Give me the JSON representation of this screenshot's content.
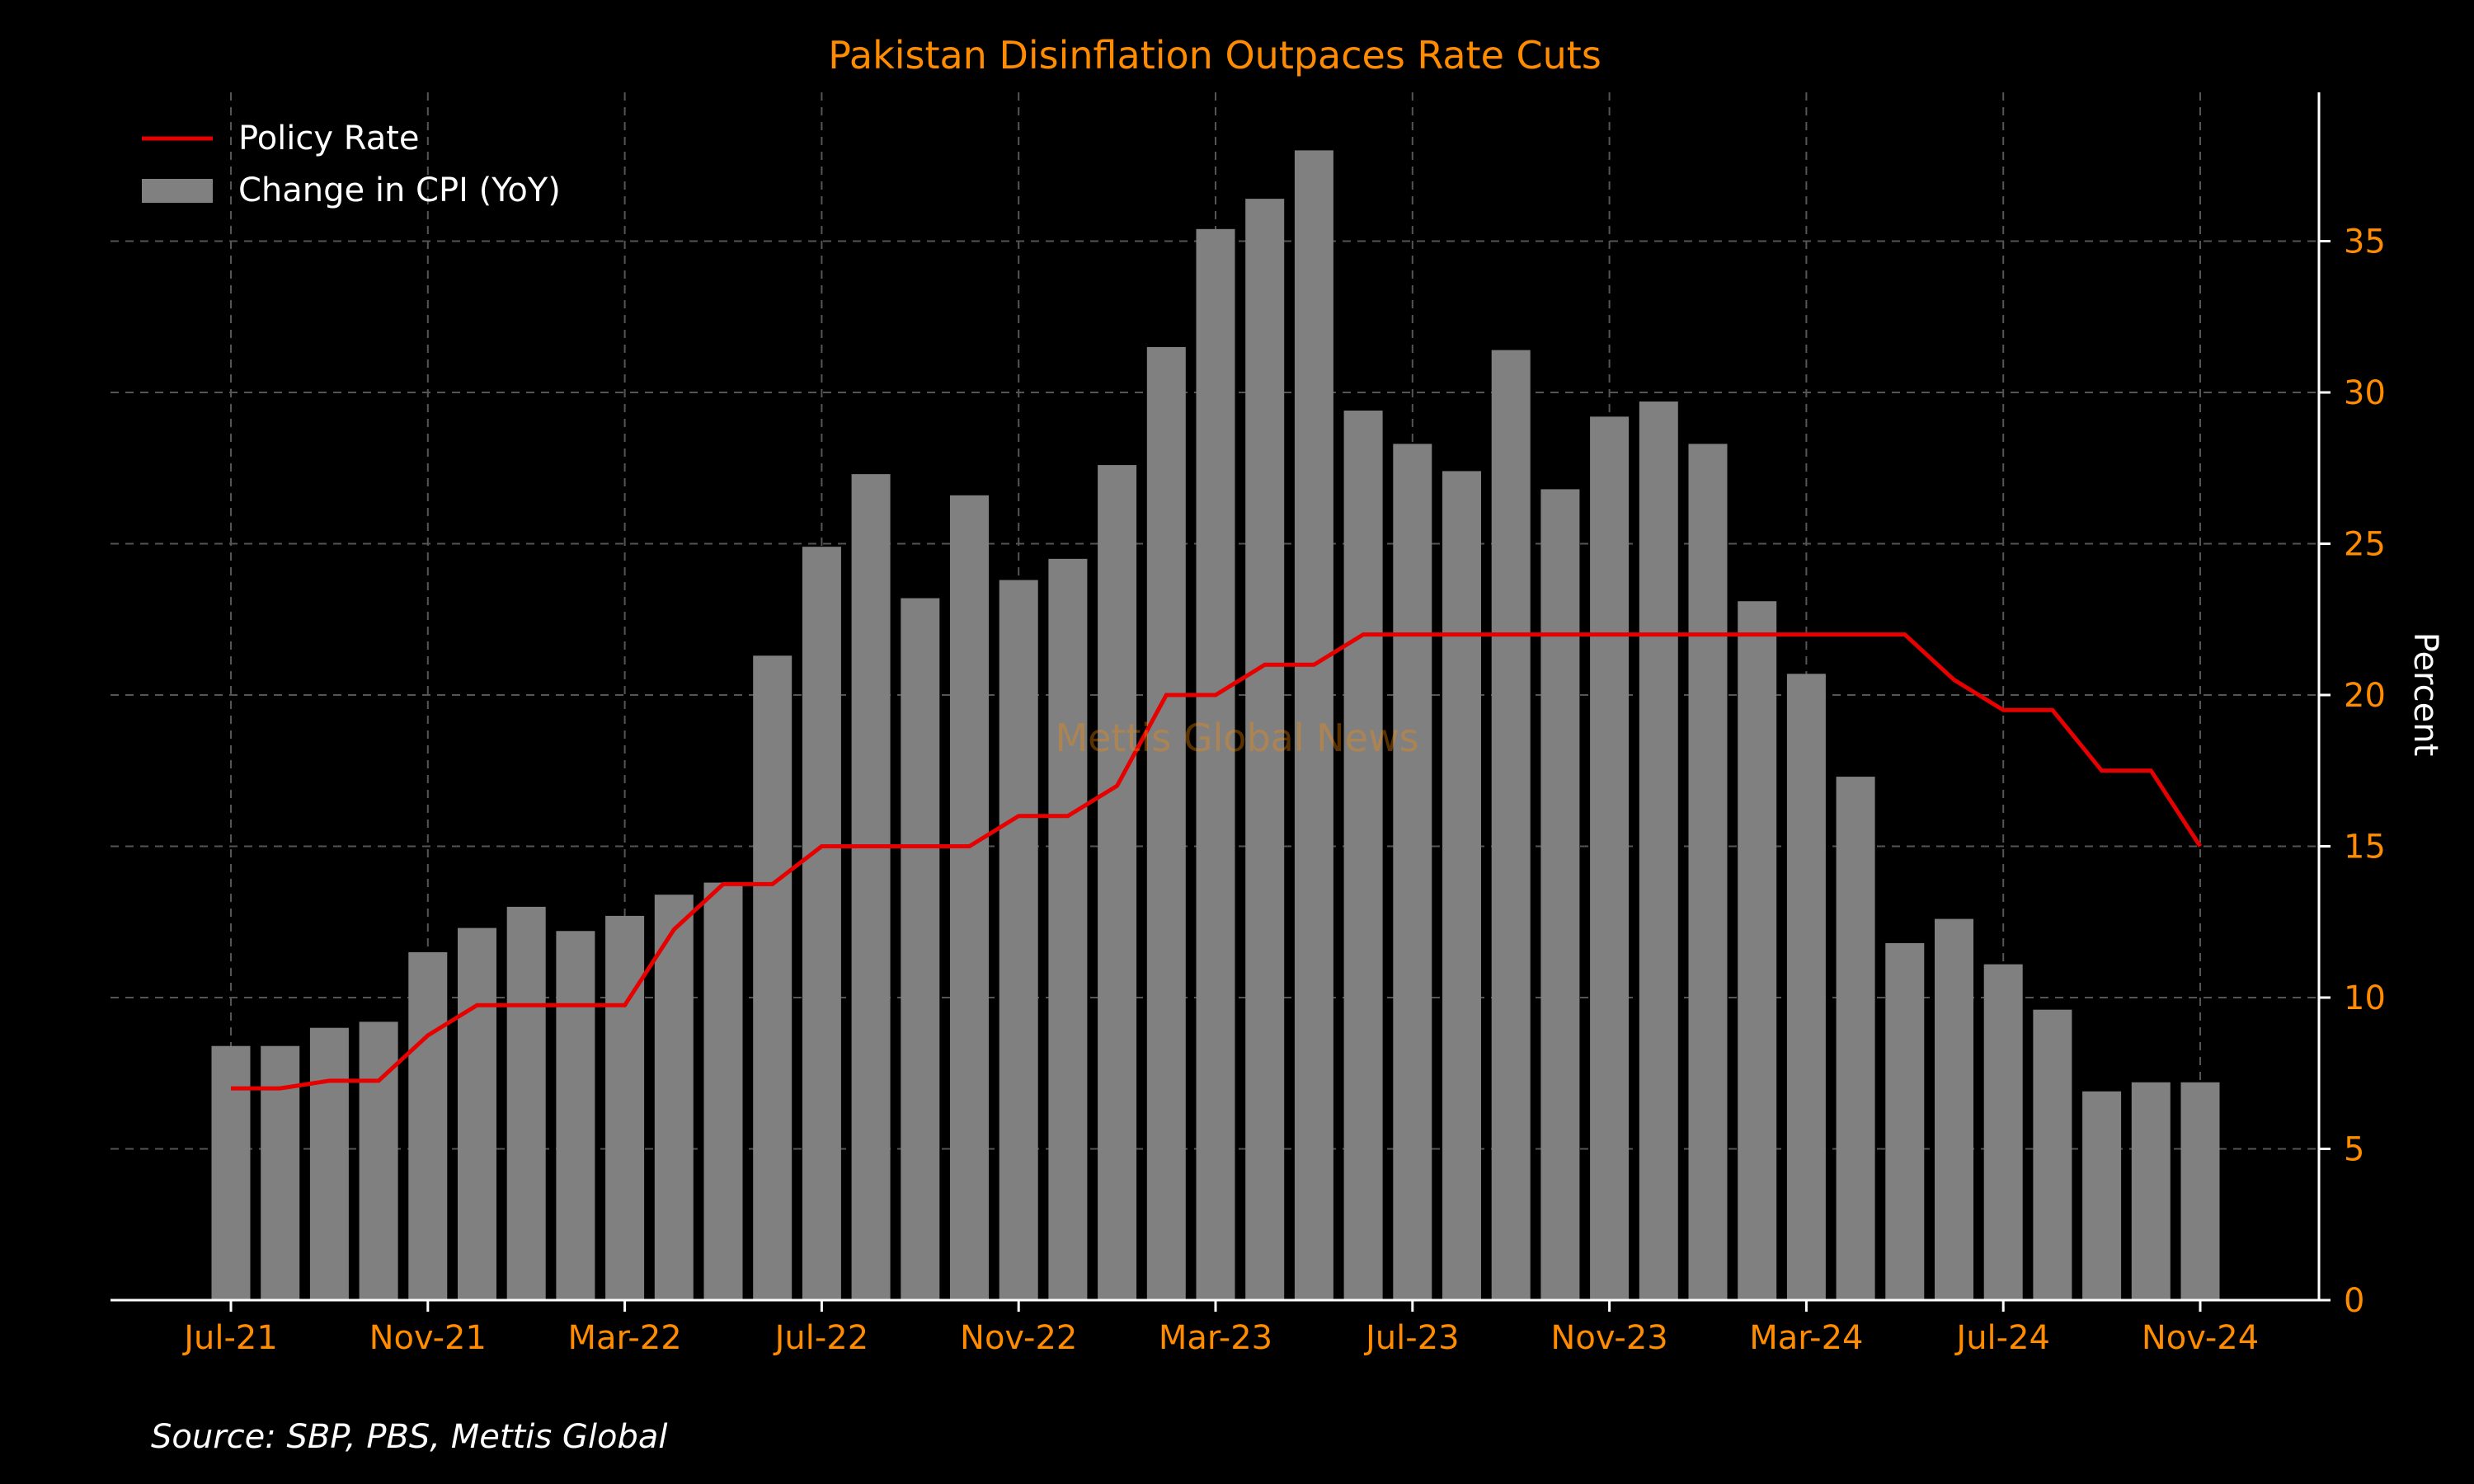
{
  "chart_data": {
    "type": "bar",
    "title": "Pakistan Disinflation Outpaces Rate Cuts",
    "ylabel": "Percent",
    "xlabel": "",
    "ylim": [
      0,
      40
    ],
    "yticks": [
      0,
      5,
      10,
      15,
      20,
      25,
      30,
      35
    ],
    "y_axis_side": "right",
    "grid": true,
    "legend_position": "top-left",
    "x_tick_labels": [
      "Jul-21",
      "Nov-21",
      "Mar-22",
      "Jul-22",
      "Nov-22",
      "Mar-23",
      "Jul-23",
      "Nov-23",
      "Mar-24",
      "Jul-24",
      "Nov-24"
    ],
    "categories": [
      "Jul-21",
      "Aug-21",
      "Sep-21",
      "Oct-21",
      "Nov-21",
      "Dec-21",
      "Jan-22",
      "Feb-22",
      "Mar-22",
      "Apr-22",
      "May-22",
      "Jun-22",
      "Jul-22",
      "Aug-22",
      "Sep-22",
      "Oct-22",
      "Nov-22",
      "Dec-22",
      "Jan-23",
      "Feb-23",
      "Mar-23",
      "Apr-23",
      "May-23",
      "Jun-23",
      "Jul-23",
      "Aug-23",
      "Sep-23",
      "Oct-23",
      "Nov-23",
      "Dec-23",
      "Jan-24",
      "Feb-24",
      "Mar-24",
      "Apr-24",
      "May-24",
      "Jun-24",
      "Jul-24",
      "Aug-24",
      "Sep-24",
      "Oct-24",
      "Nov-24"
    ],
    "series": [
      {
        "name": "Change in CPI (YoY)",
        "kind": "bar",
        "color": "#808080",
        "values": [
          8.4,
          8.4,
          9.0,
          9.2,
          11.5,
          12.3,
          13.0,
          12.2,
          12.7,
          13.4,
          13.8,
          21.3,
          24.9,
          27.3,
          23.2,
          26.6,
          23.8,
          24.5,
          27.6,
          31.5,
          35.4,
          36.4,
          38.0,
          29.4,
          28.3,
          27.4,
          31.4,
          26.8,
          29.2,
          29.7,
          28.3,
          23.1,
          20.7,
          17.3,
          11.8,
          12.6,
          11.1,
          9.6,
          6.9,
          7.2,
          7.2
        ]
      },
      {
        "name": "Policy Rate",
        "kind": "line",
        "color": "#e60000",
        "values": [
          7.0,
          7.0,
          7.25,
          7.25,
          8.75,
          9.75,
          9.75,
          9.75,
          9.75,
          12.25,
          13.75,
          13.75,
          15.0,
          15.0,
          15.0,
          15.0,
          16.0,
          16.0,
          17.0,
          20.0,
          20.0,
          21.0,
          21.0,
          22.0,
          22.0,
          22.0,
          22.0,
          22.0,
          22.0,
          22.0,
          22.0,
          22.0,
          22.0,
          22.0,
          22.0,
          20.5,
          19.5,
          19.5,
          17.5,
          17.5,
          15.0
        ]
      }
    ],
    "colors": {
      "background": "#000000",
      "accent": "#ff8c00",
      "bar": "#808080",
      "line": "#e60000",
      "axis": "#ffffff",
      "grid": "#555555"
    }
  },
  "watermark": "Mettis Global News",
  "source": "Source: SBP, PBS, Mettis Global"
}
